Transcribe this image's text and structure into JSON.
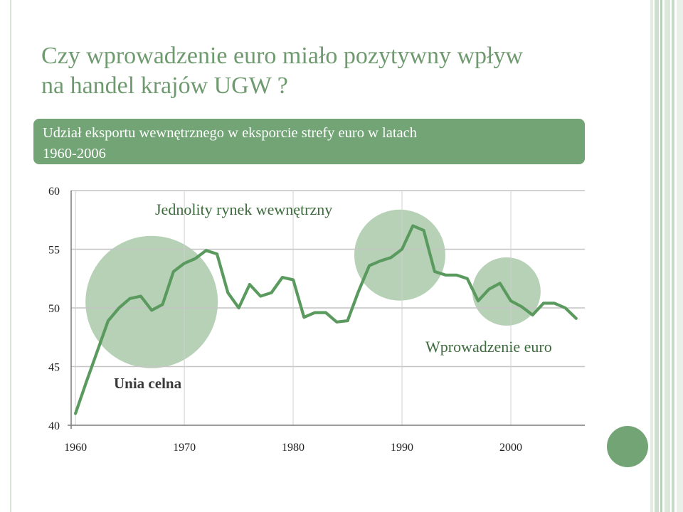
{
  "slide": {
    "title_line1": "Czy wprowadzenie euro miało pozytywny wpływ",
    "title_line2": "na handel krajów UGW ?",
    "banner_line1": "Udział eksportu wewnętrznego w eksporcie strefy euro w latach",
    "banner_line2": "1960-2006",
    "colors": {
      "title": "#6f9a6f",
      "banner": "#72a476",
      "line": "#5a9a5e",
      "bubble": "#a9c9a9"
    }
  },
  "chart_data": {
    "type": "line",
    "title": "",
    "xlabel": "",
    "ylabel": "",
    "xlim": [
      1959.6,
      2006.8
    ],
    "ylim": [
      40,
      60
    ],
    "x_ticks": [
      1960,
      1970,
      1980,
      1990,
      2000
    ],
    "y_ticks": [
      40,
      45,
      50,
      55,
      60
    ],
    "grid": true,
    "series": [
      {
        "x": [
          1960,
          1961,
          1962,
          1963,
          1964,
          1965,
          1966,
          1967,
          1968,
          1969,
          1970,
          1971,
          1972,
          1973,
          1974,
          1975,
          1976,
          1977,
          1978,
          1979,
          1980,
          1981,
          1982,
          1983,
          1984,
          1985,
          1986,
          1987,
          1988,
          1989,
          1990,
          1991,
          1992,
          1993,
          1994,
          1995,
          1996,
          1997,
          1998,
          1999,
          2000,
          2001,
          2002,
          2003,
          2004,
          2005,
          2006
        ],
        "y": [
          41.0,
          43.7,
          46.3,
          48.9,
          50.0,
          50.8,
          51.0,
          49.8,
          50.3,
          53.1,
          53.8,
          54.2,
          54.9,
          54.6,
          51.3,
          50.0,
          52.0,
          51.0,
          51.3,
          52.6,
          52.4,
          49.2,
          49.6,
          49.6,
          48.8,
          48.9,
          51.4,
          53.6,
          54.0,
          54.3,
          55.0,
          57.0,
          56.6,
          53.1,
          52.8,
          52.8,
          52.5,
          50.6,
          51.6,
          52.1,
          50.6,
          50.1,
          49.4,
          50.4,
          50.4,
          50.0,
          49.1
        ]
      }
    ],
    "annotations": [
      {
        "text": "Unia celna",
        "year_from": 1961,
        "year_to": 1973,
        "center": [
          1967.0,
          50.5
        ]
      },
      {
        "text": "Jednolity rynek wewnętrzny",
        "year_from": 1986,
        "year_to": 1994,
        "center": [
          1989.8,
          54.5
        ]
      },
      {
        "text": "Wprowadzenie euro",
        "year_from": 1996,
        "year_to": 2003,
        "center": [
          1999.6,
          51.4
        ]
      }
    ]
  }
}
